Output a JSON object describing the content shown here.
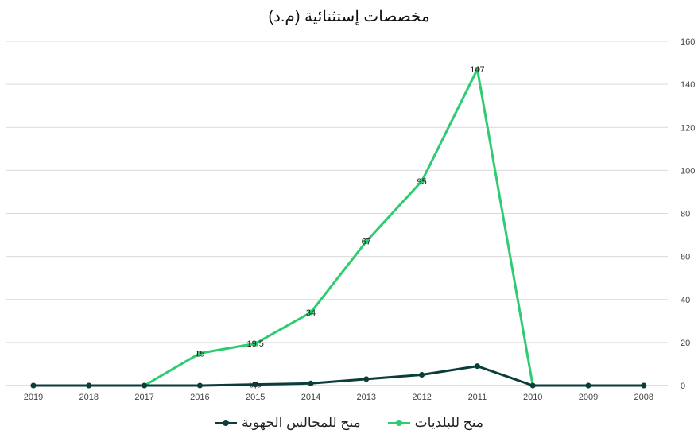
{
  "chart_data": {
    "type": "line",
    "title": "مخصصات إستثنائية (م.د)",
    "categories": [
      "2019",
      "2018",
      "2017",
      "2016",
      "2015",
      "2014",
      "2013",
      "2012",
      "2011",
      "2010",
      "2009",
      "2008"
    ],
    "y_ticks": [
      "0",
      "20",
      "40",
      "60",
      "80",
      "100",
      "120",
      "140",
      "160"
    ],
    "ylim": [
      0,
      160
    ],
    "y_axis_side": "right",
    "grid": true,
    "legend_position": "bottom",
    "series": [
      {
        "name": "منح للبلديات",
        "color": "#2ecc71",
        "values": [
          0,
          0,
          0,
          15,
          19.5,
          34,
          67,
          95,
          147,
          0,
          0,
          0
        ],
        "labels": [
          "",
          "",
          "",
          "15",
          "19,5",
          "34",
          "67",
          "95",
          "147",
          "",
          "",
          ""
        ]
      },
      {
        "name": "منح للمجالس الجهوية",
        "color": "#0b3d3a",
        "values": [
          0,
          0,
          0,
          0,
          0.5,
          1,
          3,
          5,
          9,
          0,
          0,
          0
        ],
        "labels": [
          "",
          "",
          "",
          "",
          "0,5",
          "",
          "",
          "",
          "",
          "",
          "",
          ""
        ]
      }
    ]
  }
}
